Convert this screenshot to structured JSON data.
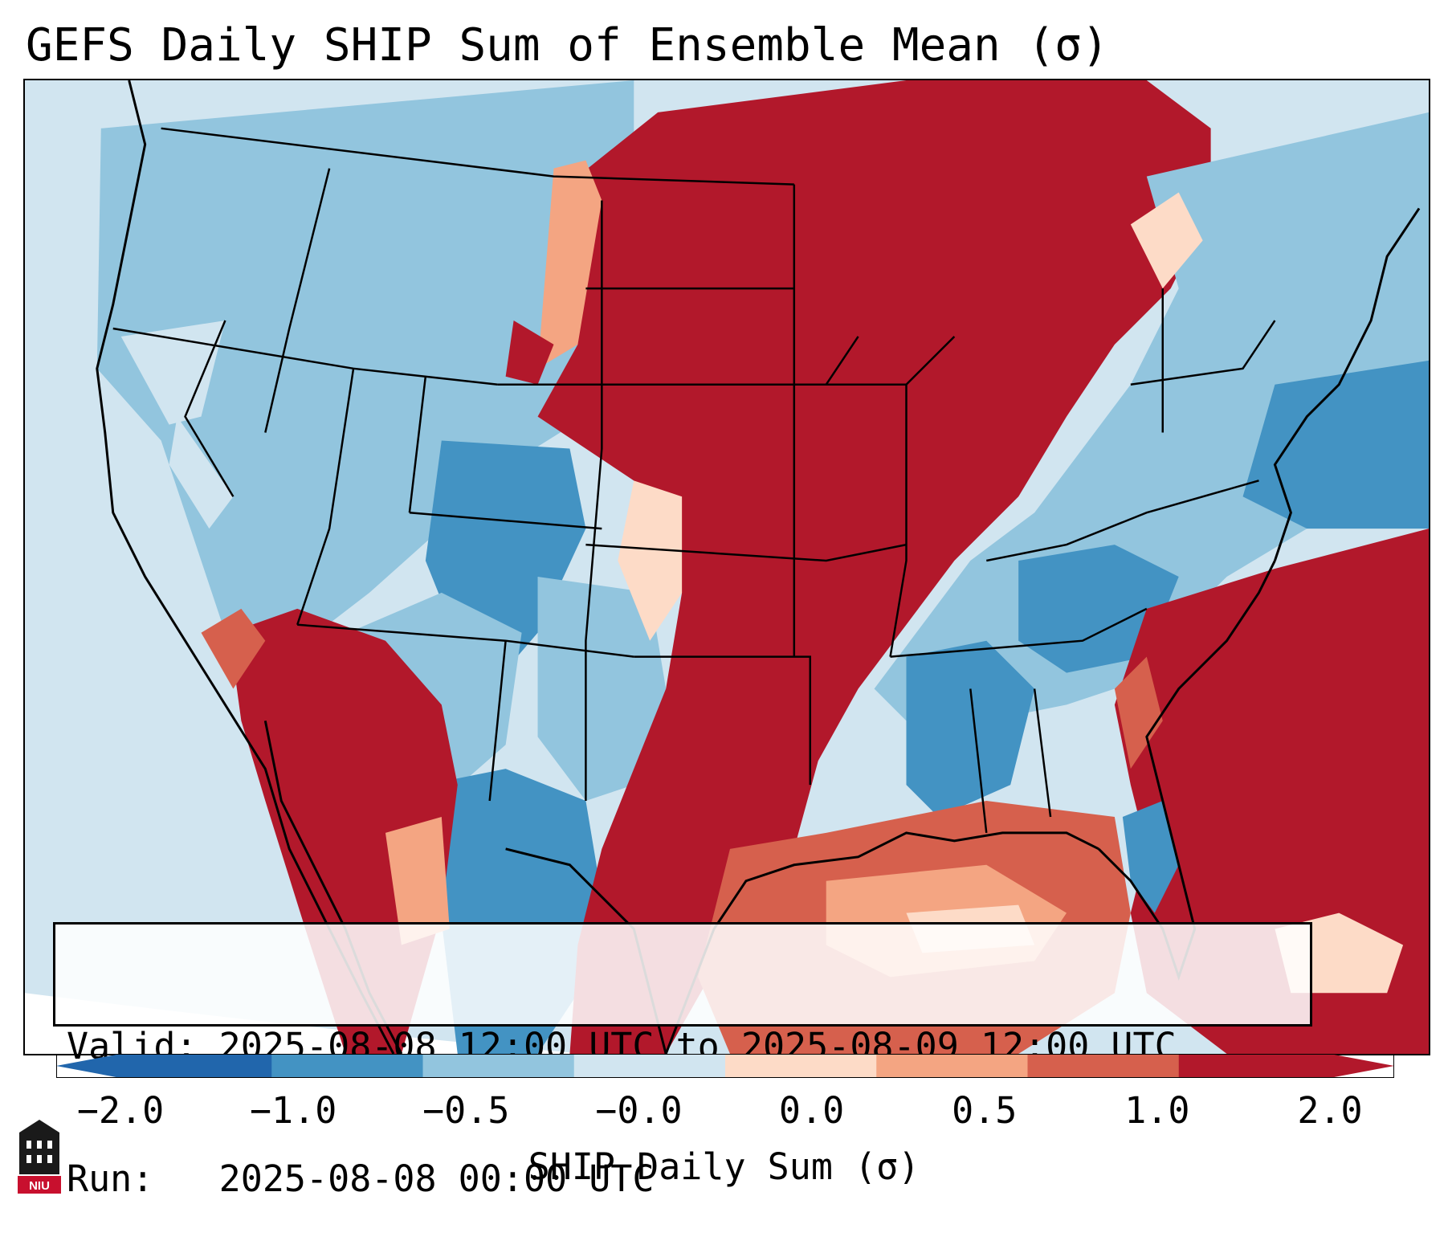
{
  "title": "GEFS Daily SHIP Sum of Ensemble Mean (σ)",
  "info": {
    "valid_line": "Valid: 2025-08-08 12:00 UTC to 2025-08-09 12:00 UTC",
    "run_line": "Run:   2025-08-08 00:00 UTC"
  },
  "colorbar": {
    "label": "SHIP Daily Sum (σ)",
    "ticks": [
      "−2.0",
      "−1.0",
      "−0.5",
      "−0.0",
      "0.0",
      "0.5",
      "1.0",
      "2.0"
    ],
    "colors": [
      "#2166ac",
      "#4393c3",
      "#92c5de",
      "#d1e5f0",
      "#fddbc7",
      "#f4a582",
      "#d6604d",
      "#b2182b"
    ],
    "extend": "both"
  },
  "legend_colors": {
    "strong_negative": "#4393c3",
    "negative": "#92c5de",
    "near_zero_negative": "#d1e5f0",
    "near_zero_positive": "#fddbc7",
    "positive": "#f4a582",
    "strong_positive": "#d6604d",
    "very_strong_positive": "#b2182b"
  },
  "logo": {
    "name": "niu-logo",
    "text": "NIU"
  }
}
